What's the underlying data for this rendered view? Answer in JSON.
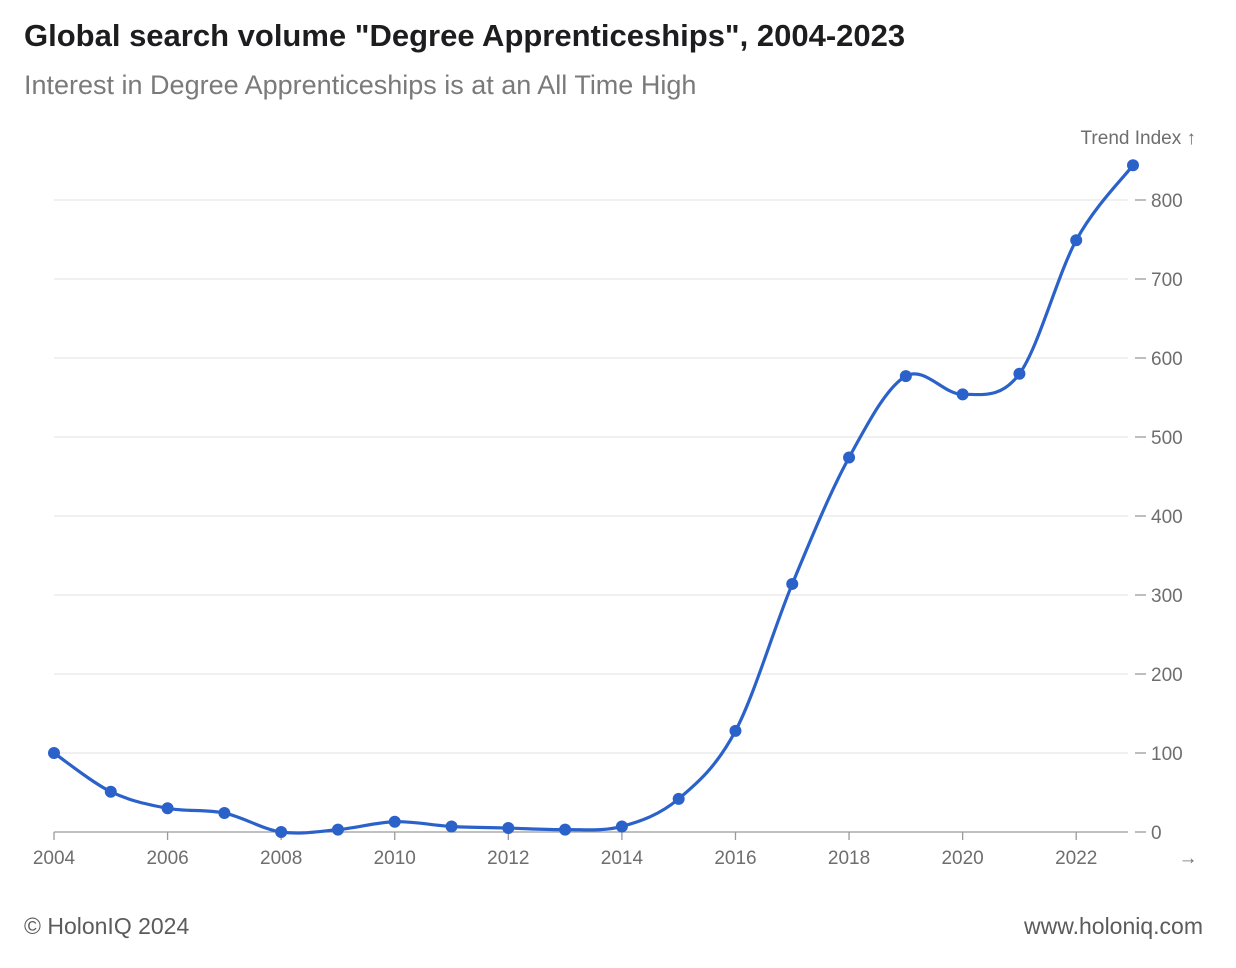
{
  "chart_data": {
    "type": "line",
    "title": "Global search volume \"Degree Apprenticeships\", 2004-2023",
    "subtitle": "Interest in Degree Apprenticeships is at an All Time High",
    "ylabel": "Trend Index ↑",
    "xlabel_arrow": "→",
    "ylim": [
      0,
      800
    ],
    "yticks": [
      "0",
      "100",
      "200",
      "300",
      "400",
      "500",
      "600",
      "700",
      "800"
    ],
    "xticks": [
      "2004",
      "2006",
      "2008",
      "2010",
      "2012",
      "2014",
      "2016",
      "2018",
      "2020",
      "2022"
    ],
    "series": [
      {
        "name": "Trend Index",
        "color": "#2b62c9",
        "x": [
          2004,
          2005,
          2006,
          2007,
          2008,
          2009,
          2010,
          2011,
          2012,
          2013,
          2014,
          2015,
          2016,
          2017,
          2018,
          2019,
          2020,
          2021,
          2022,
          2023
        ],
        "values": [
          100,
          51,
          30,
          24,
          0,
          3,
          13,
          7,
          5,
          3,
          7,
          42,
          128,
          314,
          474,
          577,
          554,
          580,
          749,
          844
        ]
      }
    ]
  },
  "footer": {
    "copyright": "© HolonIQ 2024",
    "website": "www.holoniq.com"
  }
}
